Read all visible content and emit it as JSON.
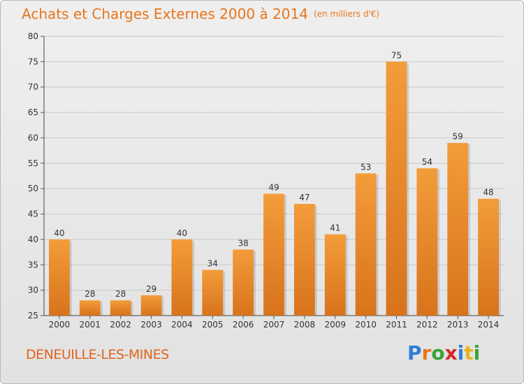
{
  "header": {
    "title": "Achats et Charges Externes 2000 à 2014",
    "unit_note": "(en milliers d'€)"
  },
  "footer": {
    "commune": "DENEUILLE-LES-MINES",
    "logo_letters": [
      "P",
      "r",
      "o",
      "x",
      "i",
      "t",
      "i"
    ],
    "logo_colors": [
      "#2f7fd4",
      "#e8751a",
      "#3aa33a",
      "#d42a2a",
      "#2f7fd4",
      "#e8b31a",
      "#3aa33a"
    ]
  },
  "chart_data": {
    "type": "bar",
    "title": "Achats et Charges Externes 2000 à 2014",
    "subtitle": "(en milliers d'€)",
    "xlabel": "",
    "ylabel": "",
    "categories": [
      "2000",
      "2001",
      "2002",
      "2003",
      "2004",
      "2005",
      "2006",
      "2007",
      "2008",
      "2009",
      "2010",
      "2011",
      "2012",
      "2013",
      "2014"
    ],
    "values": [
      40,
      28,
      28,
      29,
      40,
      34,
      38,
      49,
      47,
      41,
      53,
      75,
      54,
      59,
      48
    ],
    "data_labels": [
      "40",
      "28",
      "28",
      "29",
      "40",
      "34",
      "38",
      "49",
      "47",
      "41",
      "53",
      "75",
      "54",
      "59",
      "48"
    ],
    "ylim": [
      25,
      80
    ],
    "yticks": [
      25,
      30,
      35,
      40,
      45,
      50,
      55,
      60,
      65,
      70,
      75,
      80
    ],
    "ytick_labels": [
      "25",
      "30",
      "35",
      "40",
      "45",
      "50",
      "55",
      "60",
      "65",
      "70",
      "75",
      "80"
    ],
    "grid": true,
    "bar_color": "#f39c3a",
    "bar_color_dark": "#d8731c"
  }
}
